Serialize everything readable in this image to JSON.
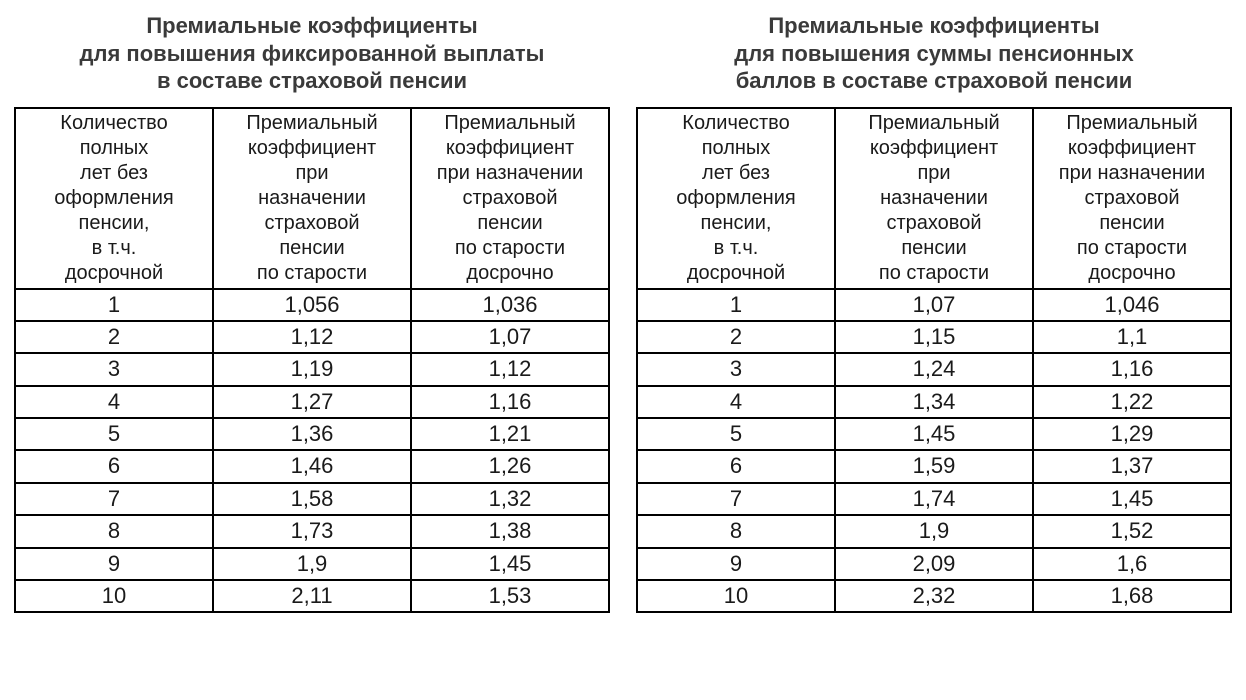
{
  "left": {
    "title": "Премиальные коэффициенты\nдля повышения фиксированной выплаты\nв составе страховой пенсии",
    "columns": [
      "Количество\nполных\nлет без\nоформления\nпенсии,\nв т.ч.\nдосрочной",
      "Премиальный\nкоэффициент\nпри\nназначении\nстраховой\nпенсии\nпо старости",
      "Премиальный\nкоэффициент\nпри назначении\nстраховой\nпенсии\nпо старости\nдосрочно"
    ],
    "rows": [
      [
        "1",
        "1,056",
        "1,036"
      ],
      [
        "2",
        "1,12",
        "1,07"
      ],
      [
        "3",
        "1,19",
        "1,12"
      ],
      [
        "4",
        "1,27",
        "1,16"
      ],
      [
        "5",
        "1,36",
        "1,21"
      ],
      [
        "6",
        "1,46",
        "1,26"
      ],
      [
        "7",
        "1,58",
        "1,32"
      ],
      [
        "8",
        "1,73",
        "1,38"
      ],
      [
        "9",
        "1,9",
        "1,45"
      ],
      [
        "10",
        "2,11",
        "1,53"
      ]
    ]
  },
  "right": {
    "title": "Премиальные коэффициенты\nдля повышения суммы пенсионных\nбаллов  в составе страховой пенсии",
    "columns": [
      "Количество\nполных\nлет без\nоформления\nпенсии,\nв т.ч.\nдосрочной",
      "Премиальный\nкоэффициент\nпри\nназначении\nстраховой\nпенсии\nпо старости",
      "Премиальный\nкоэффициент\nпри назначении\nстраховой\nпенсии\nпо старости\nдосрочно"
    ],
    "rows": [
      [
        "1",
        "1,07",
        "1,046"
      ],
      [
        "2",
        "1,15",
        "1,1"
      ],
      [
        "3",
        "1,24",
        "1,16"
      ],
      [
        "4",
        "1,34",
        "1,22"
      ],
      [
        "5",
        "1,45",
        "1,29"
      ],
      [
        "6",
        "1,59",
        "1,37"
      ],
      [
        "7",
        "1,74",
        "1,45"
      ],
      [
        "8",
        "1,9",
        "1,52"
      ],
      [
        "9",
        "2,09",
        "1,6"
      ],
      [
        "10",
        "2,32",
        "1,68"
      ]
    ]
  },
  "style": {
    "background_color": "#ffffff",
    "border_color": "#000000",
    "title_color": "#3a3a3a",
    "title_fontsize": 22,
    "title_fontweight": 700,
    "header_fontsize": 20,
    "cell_fontsize": 22,
    "font_family": "Arial"
  }
}
